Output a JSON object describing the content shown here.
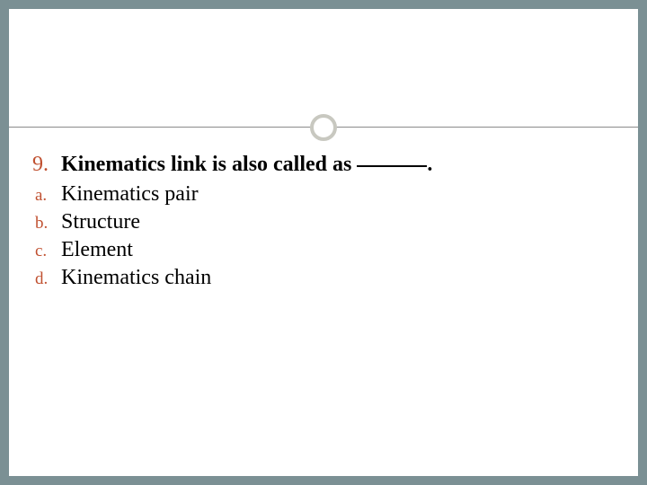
{
  "slide": {
    "background_color": "#7b9094",
    "card_background": "#ffffff",
    "accent_color": "#c05030",
    "divider_color": "#8a8a8a",
    "circle_border_color": "#c8c8c0",
    "question": {
      "number": "9.",
      "text_before_blank": "Kinematics link is also called as ",
      "text_after_blank": ".",
      "fontsize": 24,
      "fontweight": "bold"
    },
    "options": [
      {
        "letter": "a.",
        "text": "Kinematics pair"
      },
      {
        "letter": "b.",
        "text": "Structure"
      },
      {
        "letter": "c.",
        "text": "Element"
      },
      {
        "letter": "d.",
        "text": "Kinematics chain"
      }
    ],
    "option_fontsize": 24,
    "option_letter_fontsize": 19
  }
}
